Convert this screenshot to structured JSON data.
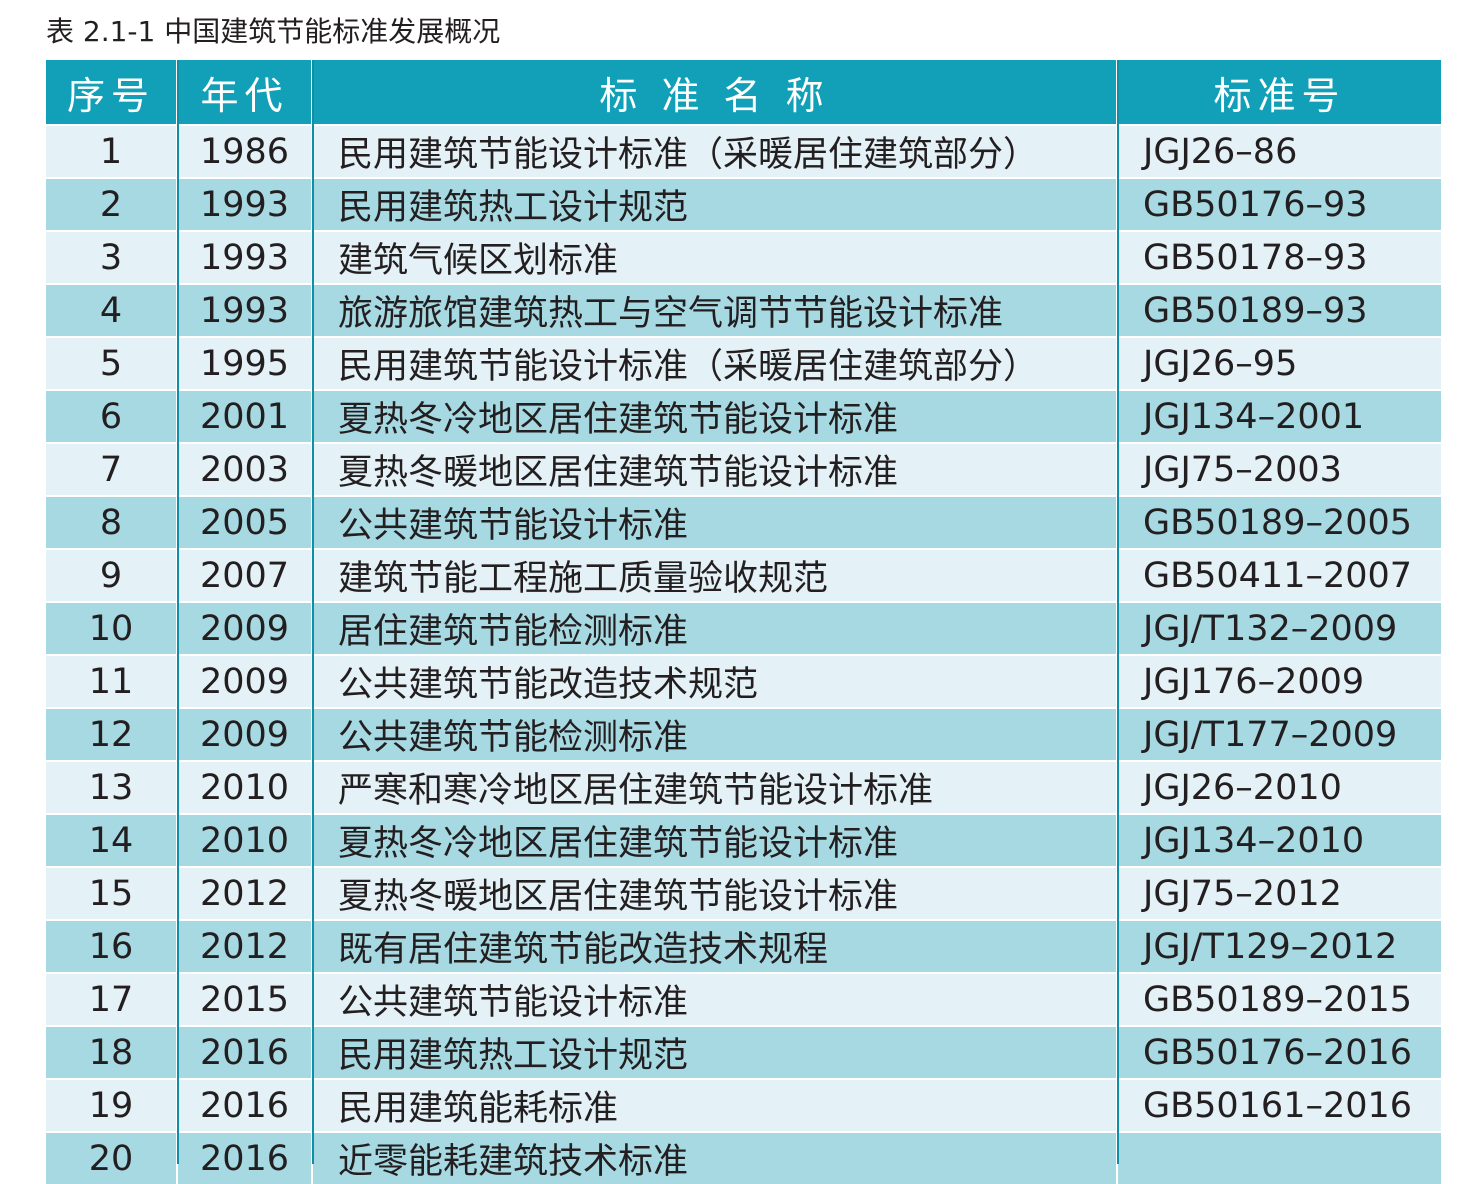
{
  "caption": "表 2.1-1 中国建筑节能标准发展概况",
  "headers": {
    "no": "序号",
    "year": "年代",
    "name": "标 准 名 称",
    "code": "标准号"
  },
  "rows": [
    {
      "no": "1",
      "year": "1986",
      "name": "民用建筑节能设计标准（采暖居住建筑部分）",
      "code": "JGJ26–86"
    },
    {
      "no": "2",
      "year": "1993",
      "name": "民用建筑热工设计规范",
      "code": "GB50176–93"
    },
    {
      "no": "3",
      "year": "1993",
      "name": "建筑气候区划标准",
      "code": "GB50178–93"
    },
    {
      "no": "4",
      "year": "1993",
      "name": "旅游旅馆建筑热工与空气调节节能设计标准",
      "code": "GB50189–93"
    },
    {
      "no": "5",
      "year": "1995",
      "name": "民用建筑节能设计标准（采暖居住建筑部分）",
      "code": "JGJ26–95"
    },
    {
      "no": "6",
      "year": "2001",
      "name": "夏热冬冷地区居住建筑节能设计标准",
      "code": "JGJ134–2001"
    },
    {
      "no": "7",
      "year": "2003",
      "name": "夏热冬暖地区居住建筑节能设计标准",
      "code": "JGJ75–2003"
    },
    {
      "no": "8",
      "year": "2005",
      "name": "公共建筑节能设计标准",
      "code": "GB50189–2005"
    },
    {
      "no": "9",
      "year": "2007",
      "name": "建筑节能工程施工质量验收规范",
      "code": "GB50411–2007"
    },
    {
      "no": "10",
      "year": "2009",
      "name": "居住建筑节能检测标准",
      "code": "JGJ/T132–2009"
    },
    {
      "no": "11",
      "year": "2009",
      "name": "公共建筑节能改造技术规范",
      "code": "JGJ176–2009"
    },
    {
      "no": "12",
      "year": "2009",
      "name": "公共建筑节能检测标准",
      "code": "JGJ/T177–2009"
    },
    {
      "no": "13",
      "year": "2010",
      "name": "严寒和寒冷地区居住建筑节能设计标准",
      "code": "JGJ26–2010"
    },
    {
      "no": "14",
      "year": "2010",
      "name": "夏热冬冷地区居住建筑节能设计标准",
      "code": "JGJ134–2010"
    },
    {
      "no": "15",
      "year": "2012",
      "name": "夏热冬暖地区居住建筑节能设计标准",
      "code": "JGJ75–2012"
    },
    {
      "no": "16",
      "year": "2012",
      "name": "既有居住建筑节能改造技术规程",
      "code": "JGJ/T129–2012"
    },
    {
      "no": "17",
      "year": "2015",
      "name": "公共建筑节能设计标准",
      "code": "GB50189–2015"
    },
    {
      "no": "18",
      "year": "2016",
      "name": "民用建筑热工设计规范",
      "code": "GB50176–2016"
    },
    {
      "no": "19",
      "year": "2016",
      "name": "民用建筑能耗标准",
      "code": "GB50161–2016"
    },
    {
      "no": "20",
      "year": "2016",
      "name": "近零能耗建筑技术标准",
      "code": ""
    }
  ],
  "colors": {
    "header_bg": "#12a0b8",
    "row_light": "#e4f1f6",
    "row_dark": "#a7d9e3",
    "divider": "#0f8ea4"
  }
}
